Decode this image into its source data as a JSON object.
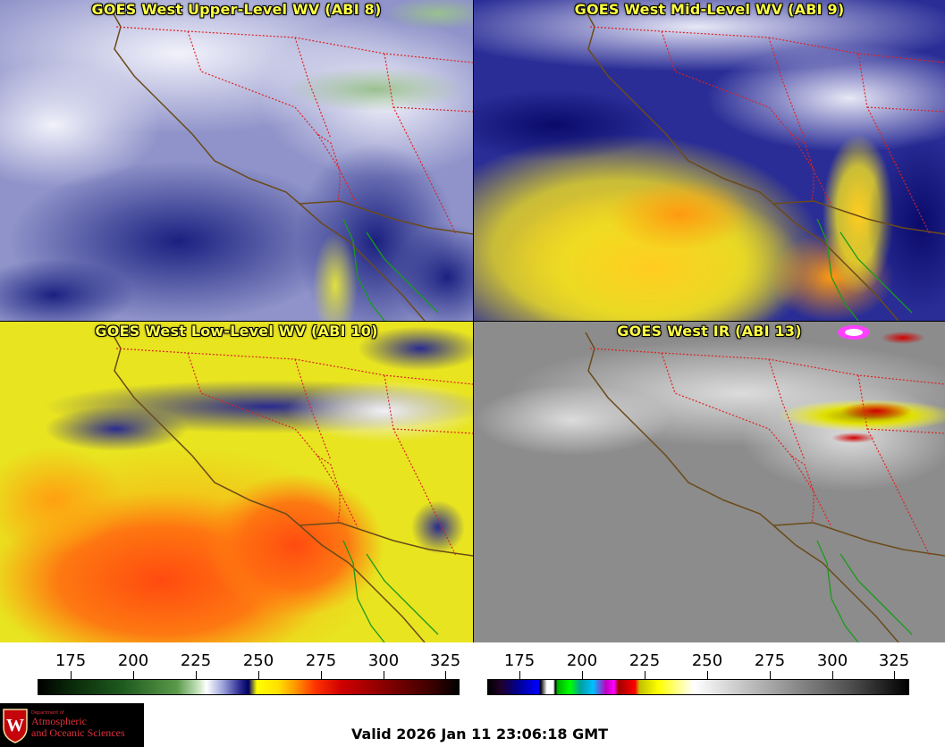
{
  "panels": {
    "top_left": {
      "title": "GOES West Upper-Level WV (ABI 8)"
    },
    "top_right": {
      "title": "GOES West Mid-Level WV (ABI 9)"
    },
    "bottom_left": {
      "title": "GOES West Low-Level WV (ABI 10)"
    },
    "bottom_right": {
      "title": "GOES West IR (ABI 13)"
    }
  },
  "colorbars": {
    "left": {
      "ticks": [
        "175",
        "200",
        "225",
        "250",
        "275",
        "300",
        "325"
      ]
    },
    "right": {
      "ticks": [
        "175",
        "200",
        "225",
        "250",
        "275",
        "300",
        "325"
      ]
    }
  },
  "logo": {
    "dept": "Department of",
    "line1": "Atmospheric",
    "line2": "and Oceanic Sciences",
    "seal_letter": "W"
  },
  "valid_time": "Valid 2026 Jan 11 23:06:18 GMT",
  "colors": {
    "title_text": "#ffff44",
    "state_borders": "#dd2222",
    "coastline": "#6b4b1a",
    "mexico_coast": "#1a9a1a",
    "logo_text": "#e0303a"
  }
}
